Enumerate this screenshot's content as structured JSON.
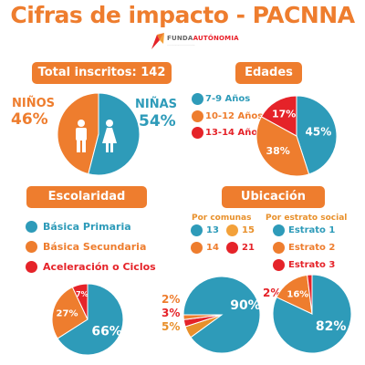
{
  "title": "Cifras de impacto - PACNNA",
  "logo": {
    "text_light": "FUNDA",
    "text_bold": "AUTÓNOMIA"
  },
  "colors": {
    "teal": "#2e9bb9",
    "orange": "#ee7d2e",
    "red": "#e52329",
    "title": "#ee7d2e"
  },
  "chart_data": [
    {
      "type": "pie",
      "title": "Total inscritos: 142",
      "series": [
        {
          "name": "NIÑOS",
          "value": 46,
          "label": "46%",
          "color": "#ee7d2e"
        },
        {
          "name": "NIÑAS",
          "value": 54,
          "label": "54%",
          "color": "#2e9bb9"
        }
      ]
    },
    {
      "type": "pie",
      "title": "Edades",
      "series": [
        {
          "name": "7-9 Años",
          "value": 45,
          "label": "45%",
          "color": "#2e9bb9"
        },
        {
          "name": "10-12 Años",
          "value": 38,
          "label": "38%",
          "color": "#ee7d2e"
        },
        {
          "name": "13-14 Años",
          "value": 17,
          "label": "17%",
          "color": "#e52329"
        }
      ]
    },
    {
      "type": "pie",
      "title": "Escolaridad",
      "series": [
        {
          "name": "Básica Primaria",
          "value": 66,
          "label": "66%",
          "color": "#2e9bb9"
        },
        {
          "name": "Básica Secundaria",
          "value": 27,
          "label": "27%",
          "color": "#ee7d2e"
        },
        {
          "name": "Aceleración o Ciclos",
          "value": 7,
          "label": "7%",
          "color": "#e52329"
        }
      ]
    },
    {
      "type": "pie",
      "title": "Ubicación",
      "subtitle": "Por comunas",
      "series": [
        {
          "name": "13",
          "value": 90,
          "label": "90%",
          "color": "#2e9bb9"
        },
        {
          "name": "15",
          "value": 5,
          "label": "5%",
          "color": "#e8902b"
        },
        {
          "name": "21",
          "value": 3,
          "label": "3%",
          "color": "#e52329"
        },
        {
          "name": "14",
          "value": 2,
          "label": "2%",
          "color": "#ee7d2e"
        }
      ]
    },
    {
      "type": "pie",
      "title": "Ubicación",
      "subtitle": "Por estrato social",
      "series": [
        {
          "name": "Estrato 1",
          "value": 82,
          "label": "82%",
          "color": "#2e9bb9"
        },
        {
          "name": "Estrato 2",
          "value": 16,
          "label": "16%",
          "color": "#ee7d2e"
        },
        {
          "name": "Estrato 3",
          "value": 2,
          "label": "2%",
          "color": "#e52329"
        }
      ]
    }
  ]
}
